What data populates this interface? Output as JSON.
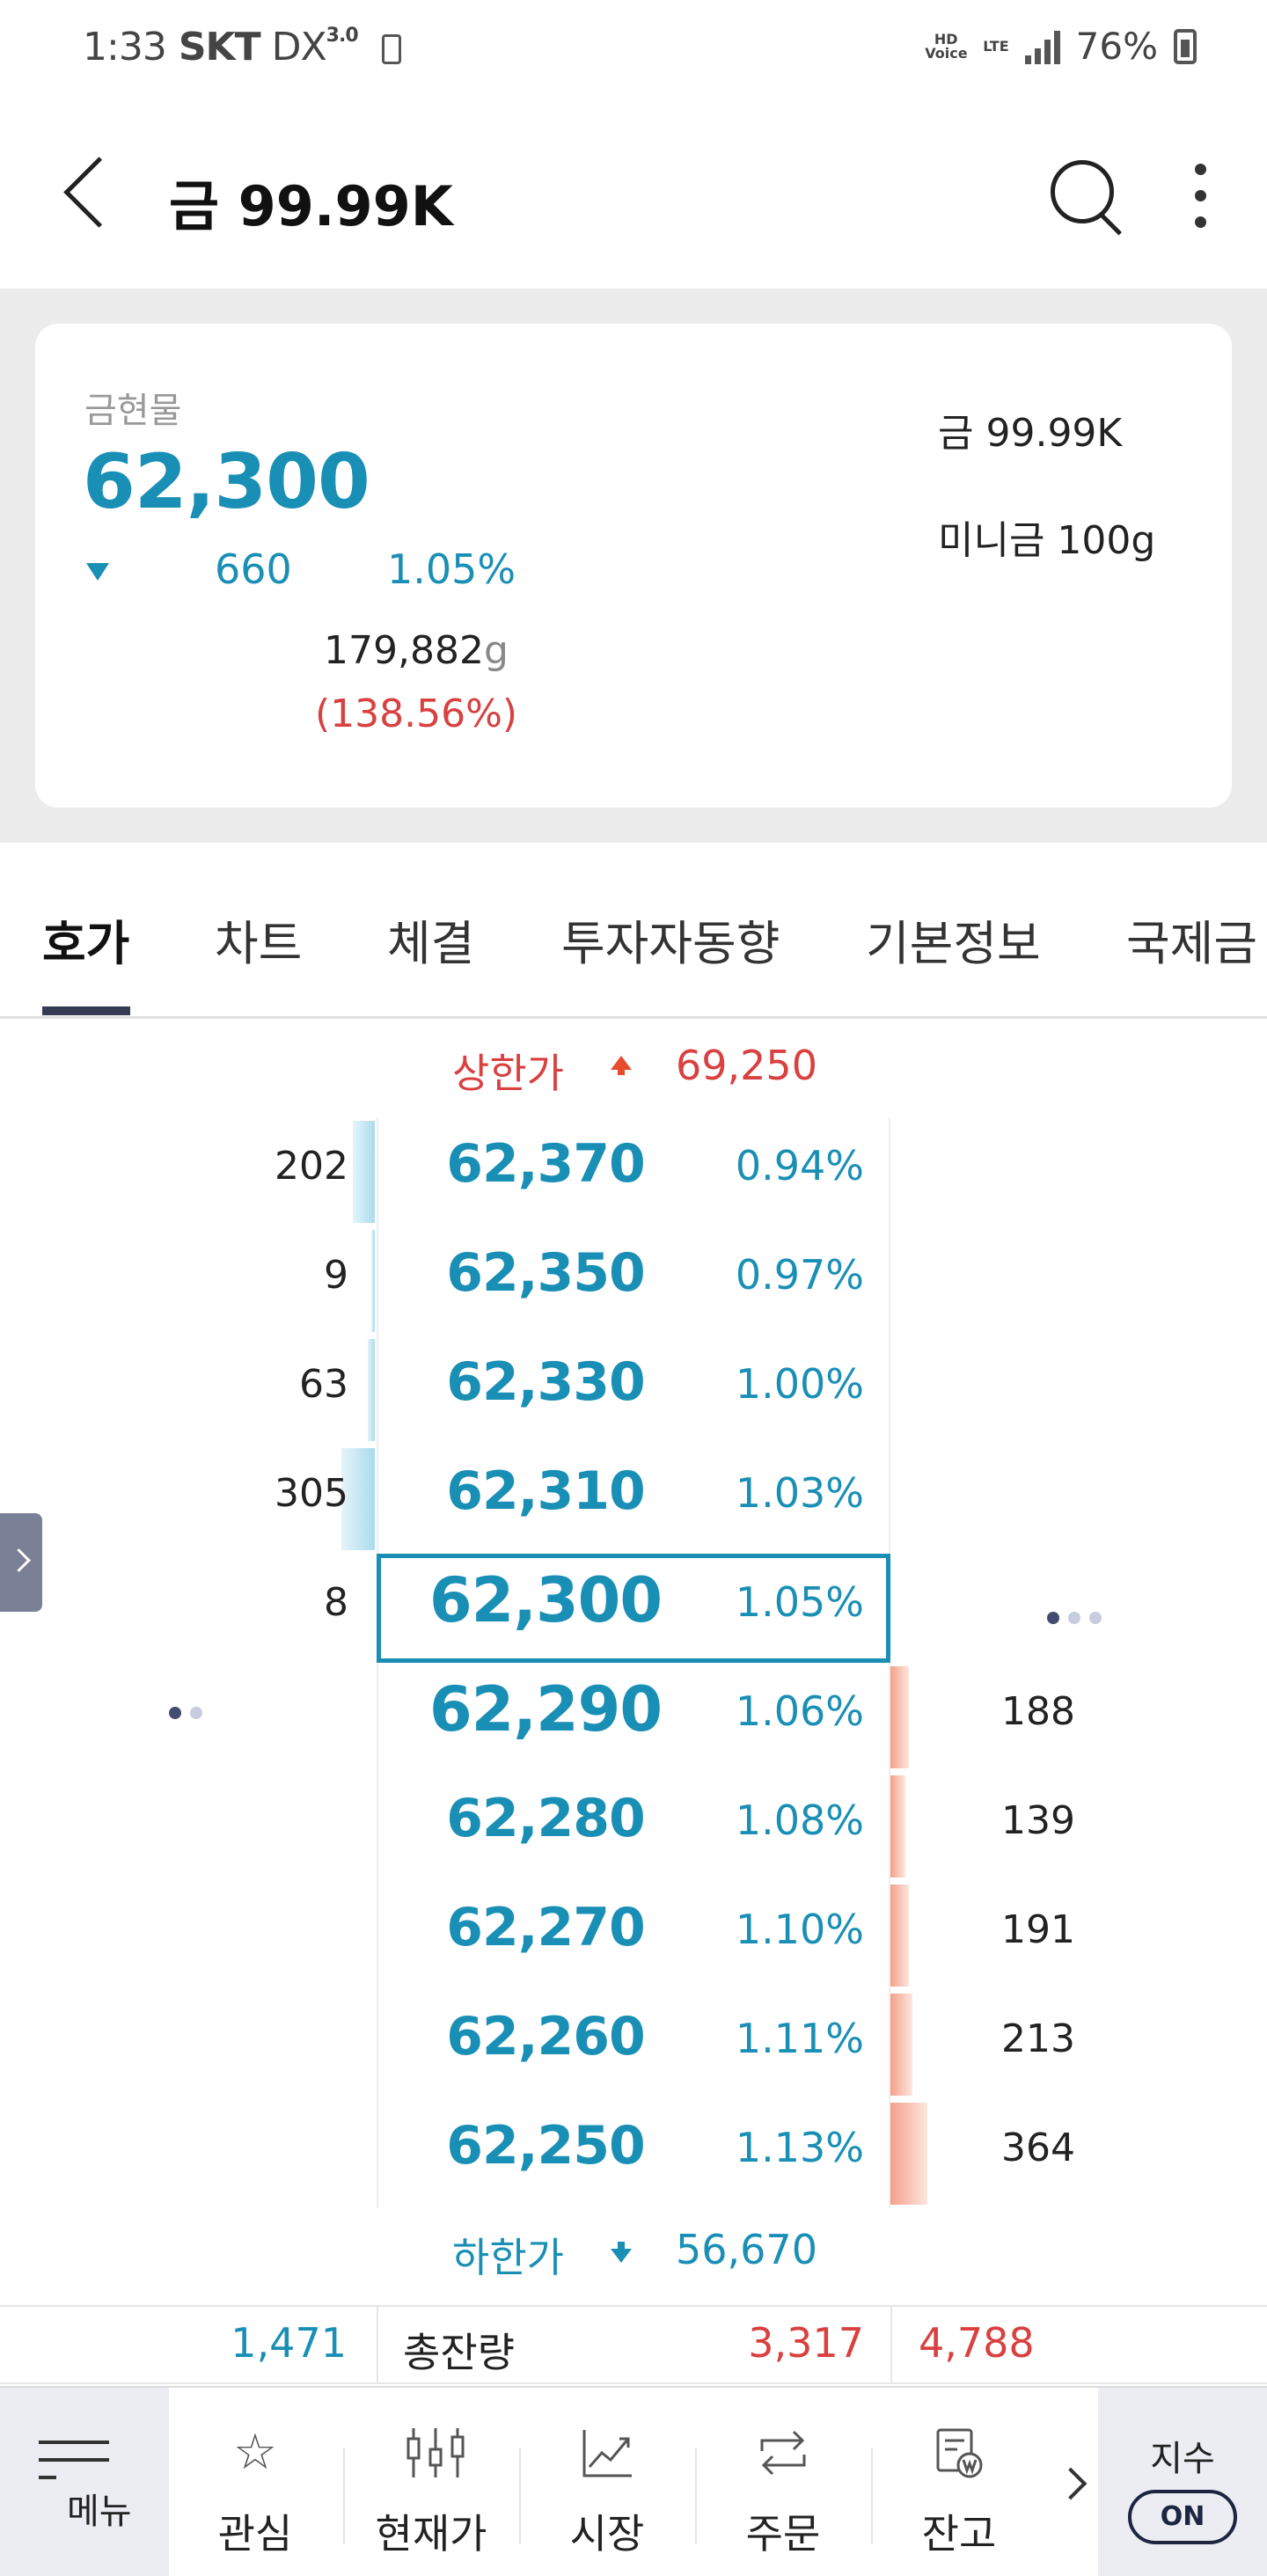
{
  "status_bar": {
    "time": "1:33",
    "carrier": "SKT",
    "network_label": "DX",
    "network_tag": "3.0",
    "hd_voice": "HD Voice",
    "lte": "LTE",
    "battery_pct": "76%"
  },
  "header": {
    "title": "금 99.99K"
  },
  "summary": {
    "label": "금현물",
    "price": "62,300",
    "change": "660",
    "change_pct": "1.05%",
    "volume": "179,882",
    "volume_unit": "g",
    "volume_pct": "(138.56%)",
    "side_item_1": "금 99.99K",
    "side_item_2": "미니금 100g"
  },
  "tabs": [
    {
      "label": "호가",
      "active": true
    },
    {
      "label": "차트"
    },
    {
      "label": "체결"
    },
    {
      "label": "투자자동향"
    },
    {
      "label": "기본정보"
    },
    {
      "label": "국제금"
    }
  ],
  "order_book": {
    "upper_limit_label": "상한가",
    "upper_limit_value": "69,250",
    "lower_limit_label": "하한가",
    "lower_limit_value": "56,670",
    "asks": [
      {
        "qty": "202",
        "price": "62,370",
        "pct": "0.94%",
        "bar": 0.06
      },
      {
        "qty": "9",
        "price": "62,350",
        "pct": "0.97%",
        "bar": 0.01
      },
      {
        "qty": "63",
        "price": "62,330",
        "pct": "1.00%",
        "bar": 0.02
      },
      {
        "qty": "305",
        "price": "62,310",
        "pct": "1.03%",
        "bar": 0.09
      },
      {
        "qty": "8",
        "price": "62,300",
        "pct": "1.05%",
        "bar": 0.0
      }
    ],
    "bids": [
      {
        "qty": "188",
        "price": "62,290",
        "pct": "1.06%",
        "bar": 0.05
      },
      {
        "qty": "139",
        "price": "62,280",
        "pct": "1.08%",
        "bar": 0.04
      },
      {
        "qty": "191",
        "price": "62,270",
        "pct": "1.10%",
        "bar": 0.05
      },
      {
        "qty": "213",
        "price": "62,260",
        "pct": "1.11%",
        "bar": 0.06
      },
      {
        "qty": "364",
        "price": "62,250",
        "pct": "1.13%",
        "bar": 0.1
      }
    ],
    "totals": {
      "ask_total": "1,471",
      "label": "총잔량",
      "bid_total": "3,317",
      "extra_total": "4,788"
    }
  },
  "bottom_nav": {
    "menu": "메뉴",
    "items": [
      {
        "label": "관심",
        "icon": "star-icon"
      },
      {
        "label": "현재가",
        "icon": "candlestick-icon"
      },
      {
        "label": "시장",
        "icon": "trend-chart-icon"
      },
      {
        "label": "주문",
        "icon": "swap-arrows-icon"
      },
      {
        "label": "잔고",
        "icon": "balance-document-icon"
      }
    ],
    "index_label": "지수",
    "index_toggle": "ON"
  },
  "colors": {
    "accent_blue": "#1a8fb5",
    "accent_red": "#d94040"
  }
}
